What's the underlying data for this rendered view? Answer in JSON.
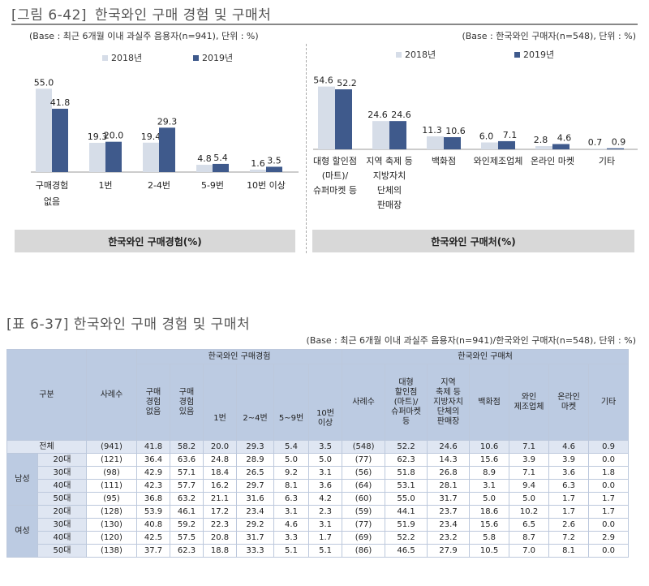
{
  "figure": {
    "title_label": "[그림 6-42]",
    "title_text": "한국와인 구매 경험 및 구매처",
    "base_left": "(Base : 최근 6개월 이내 과실주 음용자(n=941), 단위 : %)",
    "base_right": "(Base : 한국와인 구매자(n=548), 단위 : %)",
    "caption_left": "한국와인 구매경험(%)",
    "caption_right": "한국와인 구매처(%)"
  },
  "colors": {
    "series_2018": "#d6dde8",
    "series_2019": "#3f5a8c",
    "header": "#bccbe2",
    "row": "#dfe6f2"
  },
  "chart_data": [
    {
      "type": "bar",
      "categories": [
        "구매경험\n없음",
        "1번",
        "2-4번",
        "5-9번",
        "10번 이상"
      ],
      "series": [
        {
          "name": "2018년",
          "values": [
            55.0,
            19.3,
            19.4,
            4.8,
            1.6
          ],
          "labels": [
            "55.0",
            "19.3",
            "19.4",
            "4.8",
            "1.6"
          ]
        },
        {
          "name": "2019년",
          "values": [
            41.8,
            20.0,
            29.3,
            5.4,
            3.5
          ],
          "labels": [
            "41.8",
            "20.0",
            "29.3",
            "5.4",
            "3.5"
          ]
        }
      ],
      "ylim": [
        0,
        60
      ],
      "legend": "top"
    },
    {
      "type": "bar",
      "categories": [
        "대형 할인점\n(마트)/\n슈퍼마켓 등",
        "지역 축제 등\n지방자치\n단체의\n판매장",
        "백화점",
        "와인제조업체",
        "온라인 마켓",
        "기타"
      ],
      "series": [
        {
          "name": "2018년",
          "values": [
            54.6,
            24.6,
            11.3,
            6.0,
            2.8,
            0.7
          ],
          "labels": [
            "54.6",
            "24.6",
            "11.3",
            "6.0",
            "2.8",
            "0.7"
          ]
        },
        {
          "name": "2019년",
          "values": [
            52.2,
            24.6,
            10.6,
            7.1,
            4.6,
            0.9
          ],
          "labels": [
            "52.2",
            "24.6",
            "10.6",
            "7.1",
            "4.6",
            "0.9"
          ]
        }
      ],
      "ylim": [
        0,
        60
      ],
      "legend": "top"
    }
  ],
  "table": {
    "title": "[표 6-37] 한국와인 구매 경험 및 구매처",
    "base": "(Base : 최근 6개월 이내 과실주 음용자(n=941)/한국와인 구매자(n=548), 단위 : %)",
    "header": {
      "group": "구분",
      "n1": "사례수",
      "exp_group": "한국와인 구매경험",
      "exp_none": "구매\n경험\n없음",
      "exp_have": "구매\n경험\n있음",
      "exp_1": "1번",
      "exp_2_4": "2~4번",
      "exp_5_9": "5~9번",
      "exp_10": "10번\n이상",
      "place_group": "한국와인 구매처",
      "n2": "사례수",
      "p_mart": "대형\n할인점\n(마트)/\n슈퍼마켓\n등",
      "p_local": "지역\n축제 등\n지방자치\n단체의\n판매장",
      "p_dept": "백화점",
      "p_maker": "와인\n제조업체",
      "p_online": "온라인\n마켓",
      "p_etc": "기타"
    },
    "total": {
      "label": "전체",
      "cells": [
        "(941)",
        "41.8",
        "58.2",
        "20.0",
        "29.3",
        "5.4",
        "3.5",
        "(548)",
        "52.2",
        "24.6",
        "10.6",
        "7.1",
        "4.6",
        "0.9"
      ]
    },
    "groups": [
      {
        "label": "남성",
        "rows": [
          {
            "age": "20대",
            "cells": [
              "(121)",
              "36.4",
              "63.6",
              "24.8",
              "28.9",
              "5.0",
              "5.0",
              "(77)",
              "62.3",
              "14.3",
              "15.6",
              "3.9",
              "3.9",
              "0.0"
            ]
          },
          {
            "age": "30대",
            "cells": [
              "(98)",
              "42.9",
              "57.1",
              "18.4",
              "26.5",
              "9.2",
              "3.1",
              "(56)",
              "51.8",
              "26.8",
              "8.9",
              "7.1",
              "3.6",
              "1.8"
            ]
          },
          {
            "age": "40대",
            "cells": [
              "(111)",
              "42.3",
              "57.7",
              "16.2",
              "29.7",
              "8.1",
              "3.6",
              "(64)",
              "53.1",
              "28.1",
              "3.1",
              "9.4",
              "6.3",
              "0.0"
            ]
          },
          {
            "age": "50대",
            "cells": [
              "(95)",
              "36.8",
              "63.2",
              "21.1",
              "31.6",
              "6.3",
              "4.2",
              "(60)",
              "55.0",
              "31.7",
              "5.0",
              "5.0",
              "1.7",
              "1.7"
            ]
          }
        ]
      },
      {
        "label": "여성",
        "rows": [
          {
            "age": "20대",
            "cells": [
              "(128)",
              "53.9",
              "46.1",
              "17.2",
              "23.4",
              "3.1",
              "2.3",
              "(59)",
              "44.1",
              "23.7",
              "18.6",
              "10.2",
              "1.7",
              "1.7"
            ]
          },
          {
            "age": "30대",
            "cells": [
              "(130)",
              "40.8",
              "59.2",
              "22.3",
              "29.2",
              "4.6",
              "3.1",
              "(77)",
              "51.9",
              "23.4",
              "15.6",
              "6.5",
              "2.6",
              "0.0"
            ]
          },
          {
            "age": "40대",
            "cells": [
              "(120)",
              "42.5",
              "57.5",
              "20.8",
              "31.7",
              "3.3",
              "1.7",
              "(69)",
              "52.2",
              "23.2",
              "5.8",
              "8.7",
              "7.2",
              "2.9"
            ]
          },
          {
            "age": "50대",
            "cells": [
              "(138)",
              "37.7",
              "62.3",
              "18.8",
              "33.3",
              "5.1",
              "5.1",
              "(86)",
              "46.5",
              "27.9",
              "10.5",
              "7.0",
              "8.1",
              "0.0"
            ]
          }
        ]
      }
    ]
  }
}
